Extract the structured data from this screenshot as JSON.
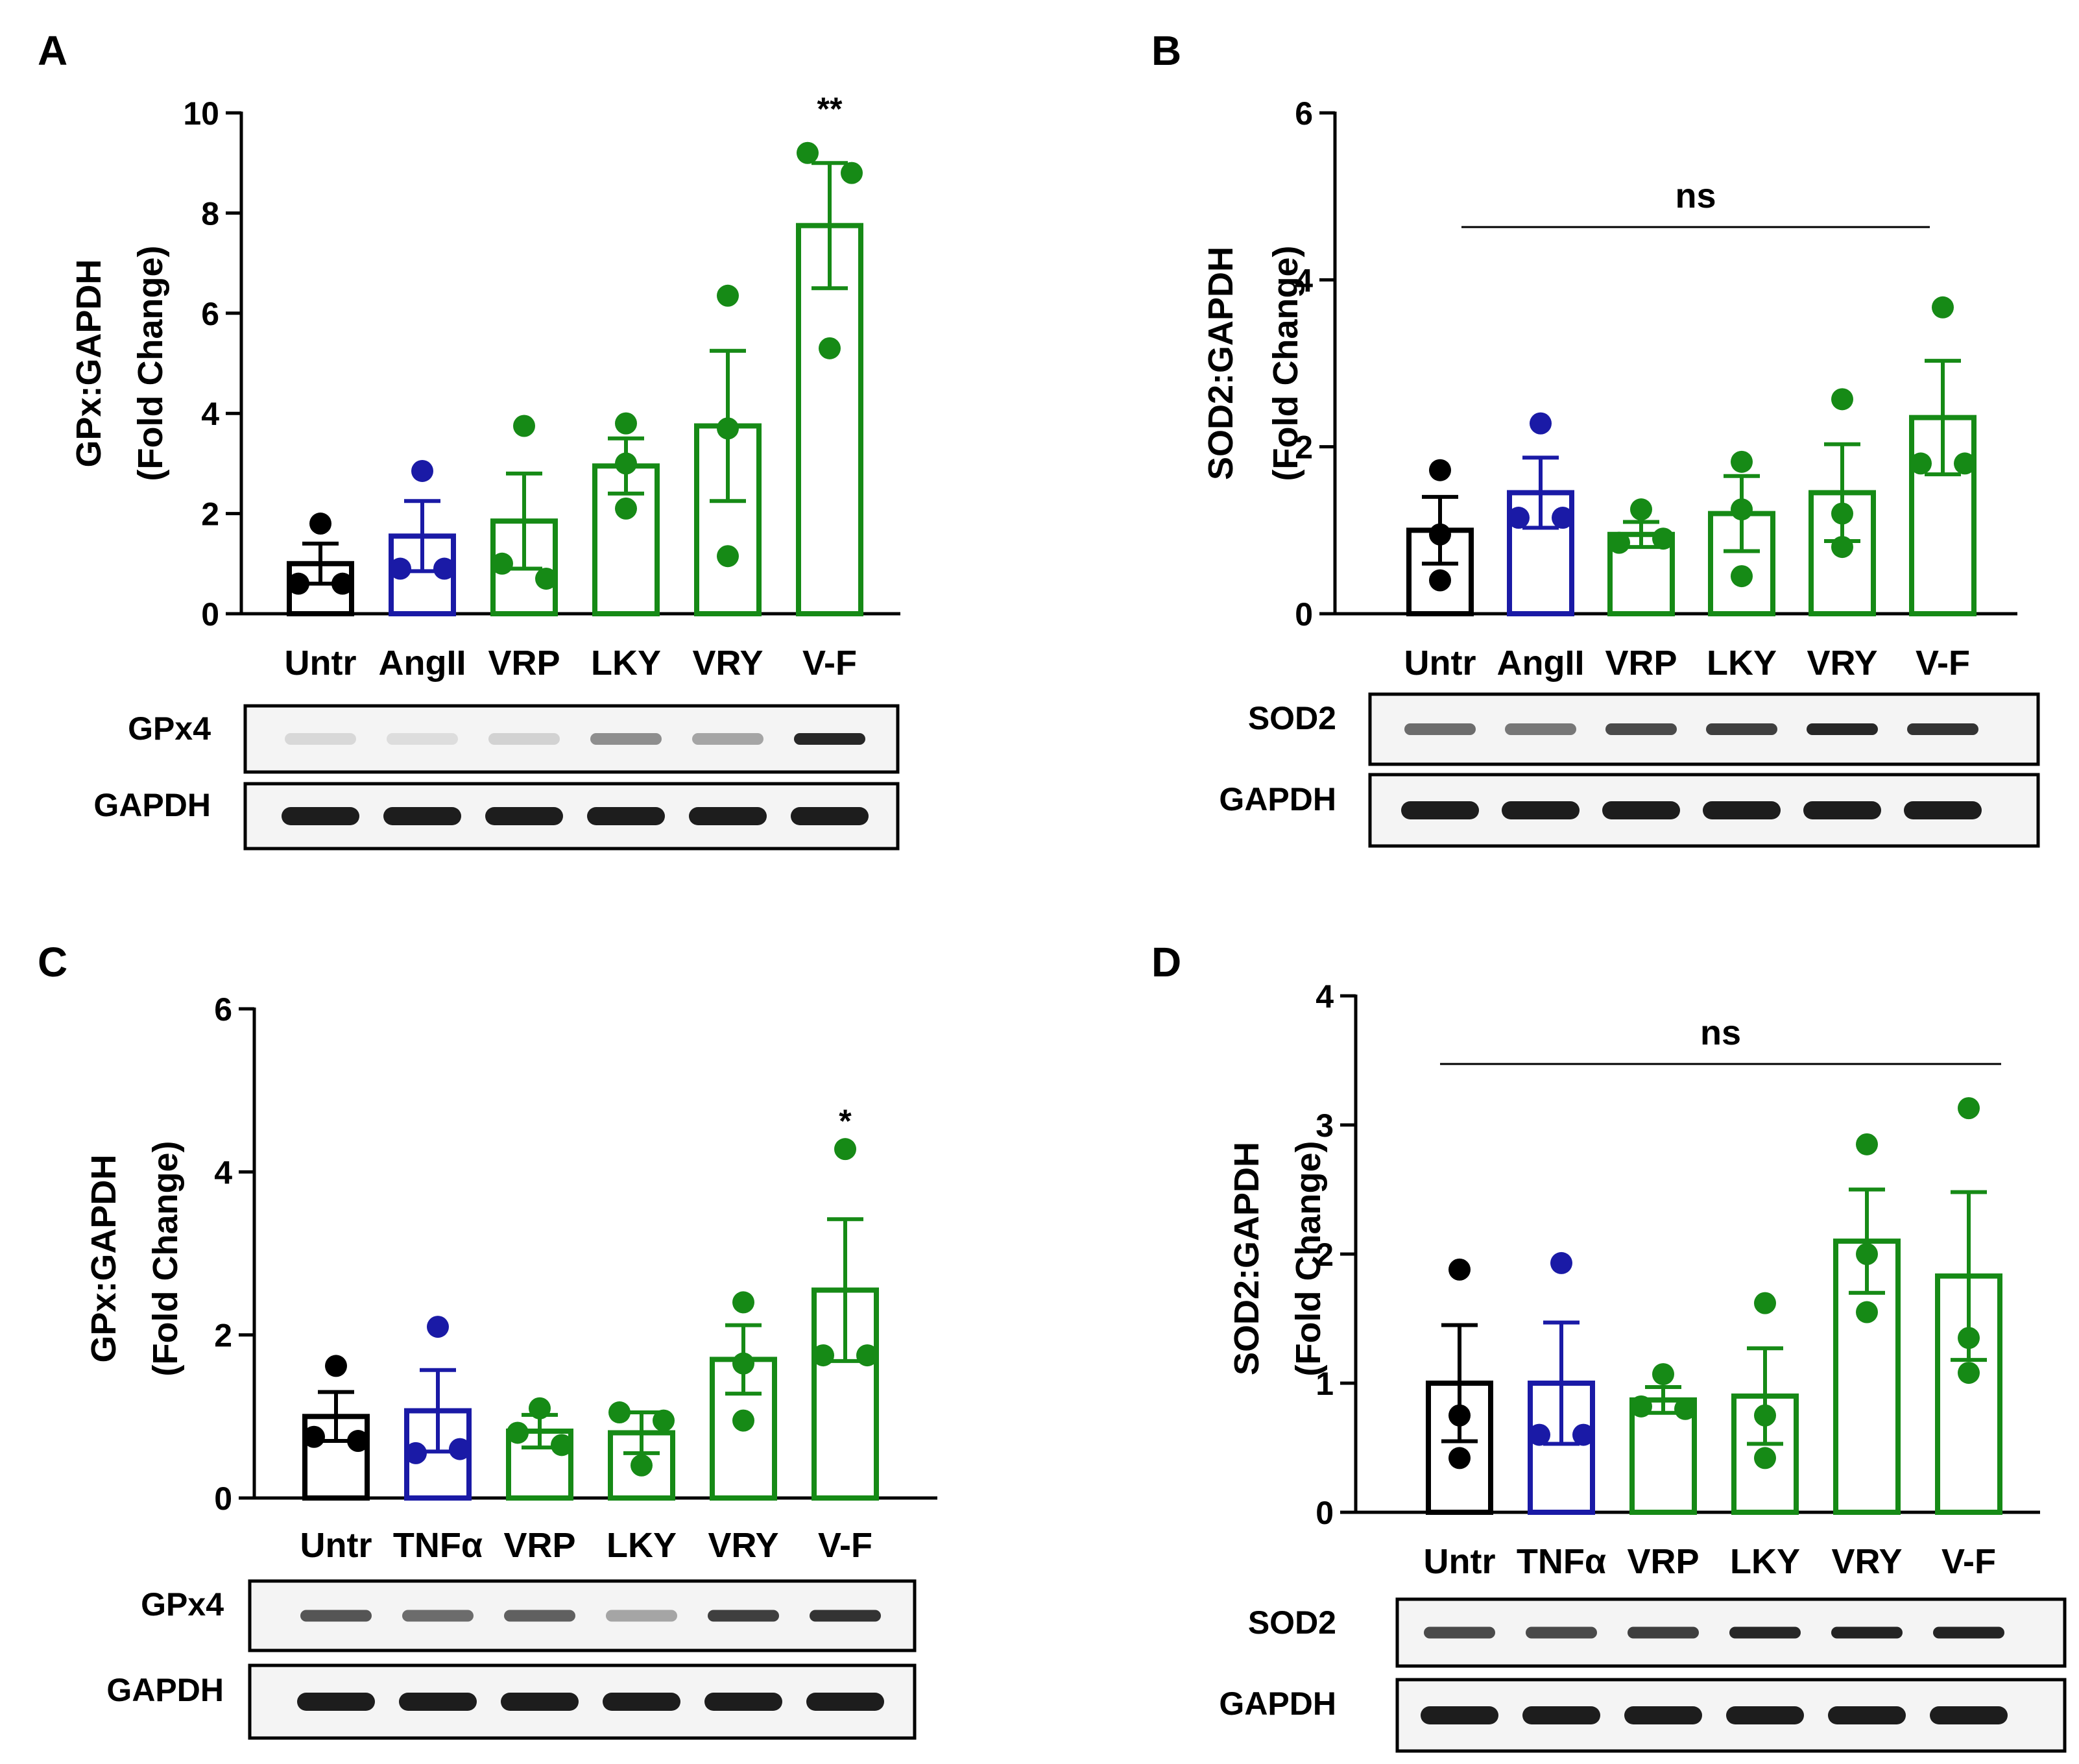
{
  "colors": {
    "black": "#000000",
    "blue": "#1a1aa6",
    "green": "#168a16"
  },
  "chart_data": [
    {
      "panel": "A",
      "type": "bar",
      "ylabel": [
        "GPx:GAPDH",
        "(Fold  Change)"
      ],
      "ylim": [
        0,
        10
      ],
      "yticks": [
        0,
        2,
        4,
        6,
        8,
        10
      ],
      "categories": [
        "Untr",
        "AngII",
        "VRP",
        "LKY",
        "VRY",
        "V-F"
      ],
      "colors": [
        "black",
        "blue",
        "green",
        "green",
        "green",
        "green"
      ],
      "values": [
        1.0,
        1.55,
        1.85,
        2.95,
        3.75,
        7.75
      ],
      "sem": [
        0.4,
        0.7,
        0.95,
        0.55,
        1.5,
        1.25
      ],
      "points": [
        [
          1.8,
          0.6,
          0.6
        ],
        [
          2.85,
          0.9,
          0.9
        ],
        [
          3.75,
          1.0,
          0.7
        ],
        [
          3.8,
          3.0,
          2.1
        ],
        [
          6.35,
          3.7,
          1.15
        ],
        [
          9.2,
          8.8,
          5.3
        ]
      ],
      "annotations": [
        "",
        "",
        "",
        "",
        "",
        "**"
      ],
      "ns": null,
      "blot": {
        "labels": [
          "GPx4",
          "GAPDH"
        ]
      }
    },
    {
      "panel": "B",
      "type": "bar",
      "ylabel": [
        "SOD2:GAPDH",
        "(Fold  Change)"
      ],
      "ylim": [
        0,
        6
      ],
      "yticks": [
        0,
        2,
        4,
        6
      ],
      "categories": [
        "Untr",
        "AngII",
        "VRP",
        "LKY",
        "VRY",
        "V-F"
      ],
      "colors": [
        "black",
        "blue",
        "green",
        "green",
        "green",
        "green"
      ],
      "values": [
        1.0,
        1.45,
        0.95,
        1.2,
        1.45,
        2.35
      ],
      "sem": [
        0.4,
        0.42,
        0.15,
        0.45,
        0.58,
        0.68
      ],
      "points": [
        [
          1.72,
          0.95,
          0.4
        ],
        [
          2.28,
          1.15,
          1.15
        ],
        [
          1.25,
          0.85,
          0.9
        ],
        [
          1.82,
          1.25,
          0.45
        ],
        [
          2.57,
          1.2,
          0.8
        ],
        [
          3.67,
          1.8,
          1.8
        ]
      ],
      "annotations": [
        "",
        "",
        "",
        "",
        "",
        ""
      ],
      "ns": "ns",
      "blot": {
        "labels": [
          "SOD2",
          "GAPDH"
        ]
      }
    },
    {
      "panel": "C",
      "type": "bar",
      "ylabel": [
        "GPx:GAPDH",
        "(Fold  Change)"
      ],
      "ylim": [
        0,
        6
      ],
      "yticks": [
        0,
        2,
        4,
        6
      ],
      "categories": [
        "Untr",
        "TNFα",
        "VRP",
        "LKY",
        "VRY",
        "V-F"
      ],
      "colors": [
        "black",
        "blue",
        "green",
        "green",
        "green",
        "green"
      ],
      "values": [
        1.0,
        1.07,
        0.82,
        0.8,
        1.7,
        2.55
      ],
      "sem": [
        0.3,
        0.5,
        0.2,
        0.25,
        0.42,
        0.87
      ],
      "points": [
        [
          1.62,
          0.75,
          0.7
        ],
        [
          2.1,
          0.55,
          0.6
        ],
        [
          1.1,
          0.8,
          0.65
        ],
        [
          1.05,
          0.95,
          0.4
        ],
        [
          2.4,
          1.65,
          0.95
        ],
        [
          4.28,
          1.75,
          1.75
        ]
      ],
      "annotations": [
        "",
        "",
        "",
        "",
        "",
        "*"
      ],
      "ns": null,
      "blot": {
        "labels": [
          "GPx4",
          "GAPDH"
        ]
      }
    },
    {
      "panel": "D",
      "type": "bar",
      "ylabel": [
        "SOD2:GAPDH",
        "(Fold  Change)"
      ],
      "ylim": [
        0,
        4
      ],
      "yticks": [
        0,
        1,
        2,
        3,
        4
      ],
      "categories": [
        "Untr",
        "TNFα",
        "VRP",
        "LKY",
        "VRY",
        "V-F"
      ],
      "colors": [
        "black",
        "blue",
        "green",
        "green",
        "green",
        "green"
      ],
      "values": [
        1.0,
        1.0,
        0.87,
        0.9,
        2.1,
        1.83
      ],
      "sem": [
        0.45,
        0.47,
        0.1,
        0.37,
        0.4,
        0.65
      ],
      "points": [
        [
          1.88,
          0.75,
          0.42
        ],
        [
          1.93,
          0.6,
          0.6
        ],
        [
          1.07,
          0.82,
          0.8
        ],
        [
          1.62,
          0.75,
          0.42
        ],
        [
          2.85,
          2.0,
          1.55
        ],
        [
          3.13,
          1.35,
          1.08
        ]
      ],
      "annotations": [
        "",
        "",
        "",
        "",
        "",
        ""
      ],
      "ns": "ns",
      "blot": {
        "labels": [
          "SOD2",
          "GAPDH"
        ]
      }
    }
  ]
}
